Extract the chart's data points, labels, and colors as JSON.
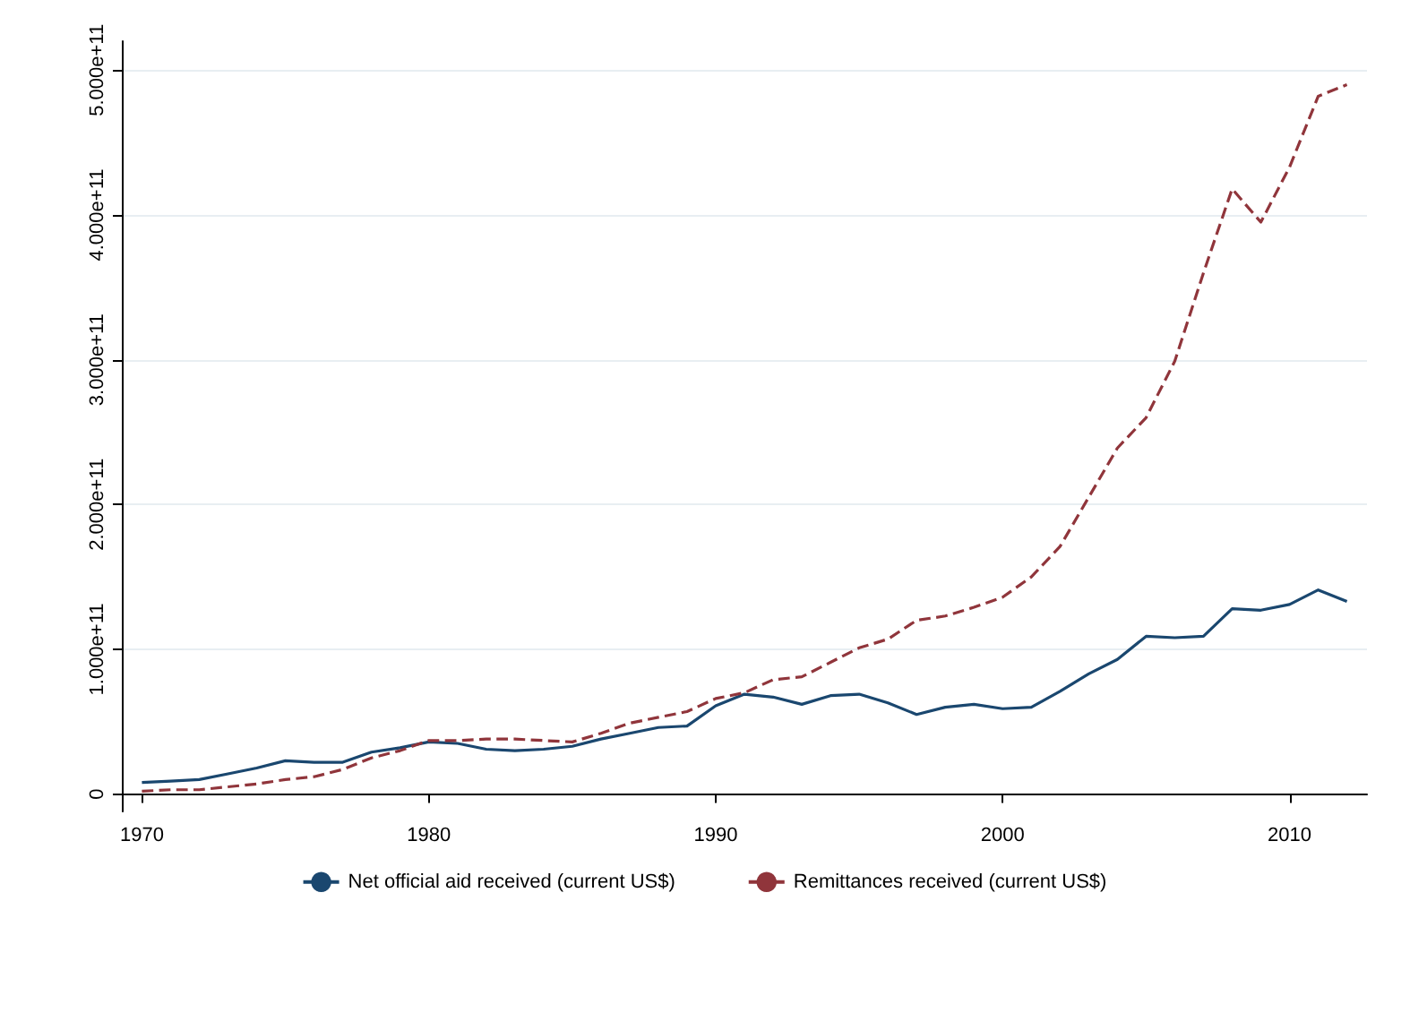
{
  "chart_data": {
    "type": "line",
    "x": [
      1970,
      1971,
      1972,
      1973,
      1974,
      1975,
      1976,
      1977,
      1978,
      1979,
      1980,
      1981,
      1982,
      1983,
      1984,
      1985,
      1986,
      1987,
      1988,
      1989,
      1990,
      1991,
      1992,
      1993,
      1994,
      1995,
      1996,
      1997,
      1998,
      1999,
      2000,
      2001,
      2002,
      2003,
      2004,
      2005,
      2006,
      2007,
      2008,
      2009,
      2010,
      2011,
      2012
    ],
    "series": [
      {
        "name": "Net official aid received (current US$)",
        "color": "#1a476f",
        "line_style": "solid",
        "values": [
          8000000000.0,
          9000000000.0,
          10000000000.0,
          14000000000.0,
          18000000000.0,
          23000000000.0,
          22000000000.0,
          22000000000.0,
          29000000000.0,
          32000000000.0,
          36000000000.0,
          35000000000.0,
          31000000000.0,
          30000000000.0,
          31000000000.0,
          33000000000.0,
          38000000000.0,
          42000000000.0,
          46000000000.0,
          47000000000.0,
          61000000000.0,
          69000000000.0,
          67000000000.0,
          62000000000.0,
          68000000000.0,
          69000000000.0,
          63000000000.0,
          55000000000.0,
          60000000000.0,
          62000000000.0,
          59000000000.0,
          60000000000.0,
          71000000000.0,
          83000000000.0,
          93000000000.0,
          109000000000.0,
          108000000000.0,
          109000000000.0,
          128000000000.0,
          127000000000.0,
          131000000000.0,
          141000000000.0,
          133000000000.0
        ]
      },
      {
        "name": "Remittances received (current US$)",
        "color": "#90353b",
        "line_style": "dashed",
        "values": [
          2000000000.0,
          3000000000.0,
          3000000000.0,
          5000000000.0,
          7000000000.0,
          10000000000.0,
          12000000000.0,
          17000000000.0,
          25000000000.0,
          30000000000.0,
          37000000000.0,
          37000000000.0,
          38000000000.0,
          38000000000.0,
          37000000000.0,
          36000000000.0,
          42000000000.0,
          49000000000.0,
          53000000000.0,
          57000000000.0,
          66000000000.0,
          70000000000.0,
          79000000000.0,
          81000000000.0,
          91000000000.0,
          101000000000.0,
          107000000000.0,
          120000000000.0,
          123000000000.0,
          129000000000.0,
          136000000000.0,
          150000000000.0,
          171000000000.0,
          205000000000.0,
          239000000000.0,
          260000000000.0,
          299000000000.0,
          360000000000.0,
          418000000000.0,
          395000000000.0,
          433000000000.0,
          482000000000.0,
          490000000000.0
        ]
      }
    ],
    "xlim": [
      1969.3,
      2012.7
    ],
    "xticks": [
      1970,
      1980,
      1990,
      2000,
      2010
    ],
    "ylim": [
      -12000000000.0,
      520000000000.0
    ],
    "yticks": [
      {
        "value": 0,
        "label": "0"
      },
      {
        "value": 100000000000.0,
        "label": "1.000e+11"
      },
      {
        "value": 200000000000.0,
        "label": "2.000e+11"
      },
      {
        "value": 300000000000.0,
        "label": "3.000e+11"
      },
      {
        "value": 400000000000.0,
        "label": "4.000e+11"
      },
      {
        "value": 500000000000.0,
        "label": "5.000e+11"
      }
    ],
    "grid": "y",
    "legend": "bottom",
    "marker": "none"
  }
}
